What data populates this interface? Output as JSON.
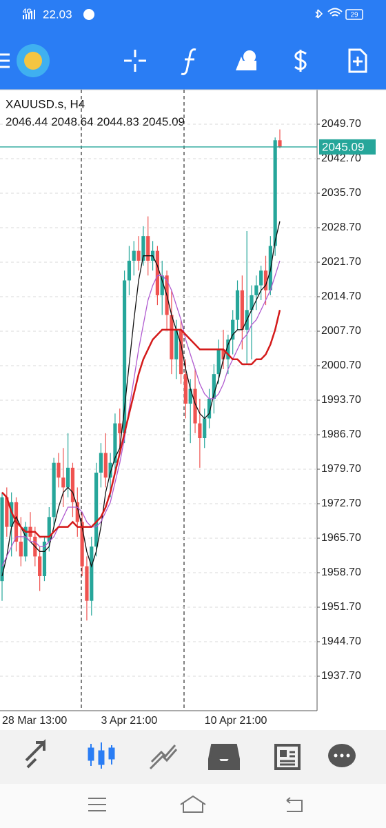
{
  "status_bar": {
    "network": "4G",
    "time": "22.03",
    "battery": "29"
  },
  "chart_data": {
    "type": "candlestick",
    "title": "XAUUSD.s, H4",
    "categories": [
      "28 Mar 13:00",
      null,
      null,
      null,
      null,
      null,
      null,
      null,
      null,
      null,
      null,
      null,
      null,
      null,
      null,
      null,
      null,
      null,
      null,
      null,
      null,
      "3 Apr 21:00",
      null,
      null,
      null,
      null,
      null,
      null,
      null,
      null,
      null,
      null,
      null,
      null,
      null,
      null,
      null,
      null,
      null,
      null,
      null,
      null,
      null,
      "10 Apr 21:00",
      null,
      null,
      null,
      null,
      null,
      null,
      null,
      null,
      null,
      null,
      null,
      null,
      null,
      null,
      null,
      null
    ],
    "open": [
      1957,
      1974,
      1968,
      1973,
      1965,
      1962,
      1968,
      1966,
      1962,
      1958,
      1965,
      1970,
      1981,
      1978,
      1976,
      1980,
      1973,
      1969,
      1960,
      1953,
      1964,
      1979,
      1983,
      1978,
      1981,
      1989,
      1987,
      2018,
      2022,
      2024,
      2022,
      2027,
      2022,
      2024,
      2015,
      2019,
      2011,
      2002,
      2008,
      1999,
      1993,
      1996,
      1989,
      1986,
      1990,
      1994,
      1999,
      2004,
      2002,
      2006,
      2010,
      2016,
      2008,
      2012,
      2015,
      2017,
      2020,
      2016,
      2025,
      2046.44
    ],
    "high": [
      1975,
      1976,
      1975,
      1974,
      1970,
      1969,
      1971,
      1968,
      1964,
      1966,
      1972,
      1982,
      1983,
      1984,
      1987,
      1981,
      1976,
      1971,
      1962,
      1966,
      1981,
      1985,
      1987,
      1983,
      1991,
      1992,
      2020,
      2025,
      2026,
      2027,
      2029,
      2031,
      2026,
      2025,
      2022,
      2020,
      2016,
      2010,
      2010,
      2002,
      1998,
      2000,
      1994,
      1992,
      1996,
      2001,
      2006,
      2008,
      2007,
      2012,
      2018,
      2019,
      2028,
      2017,
      2019,
      2021,
      2023,
      2027,
      2047,
      2048.64
    ],
    "low": [
      1953,
      1966,
      1962,
      1963,
      1960,
      1961,
      1965,
      1960,
      1955,
      1957,
      1963,
      1968,
      1976,
      1972,
      1974,
      1970,
      1966,
      1958,
      1949,
      1950,
      1962,
      1976,
      1976,
      1974,
      1979,
      1984,
      1985,
      2015,
      2019,
      2020,
      2021,
      2019,
      2020,
      2013,
      2011,
      2008,
      1999,
      1998,
      1997,
      1990,
      1985,
      1987,
      1980,
      1984,
      1988,
      1991,
      1997,
      2000,
      1999,
      2003,
      2008,
      2004,
      2001,
      2002,
      2012,
      2014,
      2013,
      2015,
      2023,
      2044.83
    ],
    "close": [
      1974,
      1968,
      1973,
      1965,
      1962,
      1968,
      1966,
      1962,
      1958,
      1965,
      1970,
      1981,
      1978,
      1976,
      1980,
      1973,
      1969,
      1960,
      1953,
      1964,
      1979,
      1983,
      1978,
      1981,
      1989,
      1987,
      2018,
      2022,
      2024,
      2022,
      2027,
      2022,
      2024,
      2015,
      2019,
      2011,
      2002,
      2008,
      1999,
      1993,
      1996,
      1989,
      1986,
      1990,
      1994,
      1999,
      2004,
      2002,
      2006,
      2010,
      2016,
      2008,
      2012,
      2015,
      2017,
      2020,
      2016,
      2025,
      2046.44,
      2045.09
    ],
    "up_color": "#26a69a",
    "down_color": "#ef5350",
    "series": [
      {
        "color": "#111111",
        "values": [
          1958,
          1962,
          1968,
          1970,
          1968,
          1966,
          1965,
          1964,
          1963,
          1963,
          1964,
          1968,
          1972,
          1975,
          1976,
          1975,
          1972,
          1968,
          1963,
          1960,
          1963,
          1968,
          1975,
          1979,
          1982,
          1984,
          1992,
          2001,
          2010,
          2018,
          2023,
          2023,
          2023,
          2021,
          2018,
          2015,
          2011,
          2008,
          2005,
          2000,
          1996,
          1993,
          1991,
          1990,
          1991,
          1995,
          1998,
          2002,
          2005,
          2007,
          2008,
          2008,
          2010,
          2012,
          2014,
          2016,
          2017,
          2020,
          2026,
          2030
        ]
      },
      {
        "color": "#b05ad0",
        "values": [
          1960,
          1962,
          1964,
          1966,
          1966,
          1966,
          1965,
          1965,
          1964,
          1964,
          1965,
          1966,
          1968,
          1970,
          1972,
          1972,
          1972,
          1971,
          1969,
          1968,
          1968,
          1969,
          1971,
          1973,
          1977,
          1981,
          1986,
          1992,
          1998,
          2004,
          2009,
          2014,
          2017,
          2019,
          2019,
          2018,
          2016,
          2013,
          2010,
          2006,
          2003,
          2000,
          1997,
          1995,
          1994,
          1994,
          1995,
          1997,
          2000,
          2002,
          2004,
          2006,
          2007,
          2009,
          2010,
          2012,
          2014,
          2016,
          2019,
          2022
        ]
      },
      {
        "color": "#d41a1a",
        "values": [
          1975,
          1974,
          1971,
          1969,
          1968,
          1967,
          1967,
          1967,
          1966,
          1966,
          1966,
          1967,
          1968,
          1968,
          1968,
          1969,
          1968,
          1968,
          1968,
          1968,
          1969,
          1970,
          1972,
          1975,
          1979,
          1983,
          1987,
          1991,
          1995,
          1999,
          2002,
          2004,
          2006,
          2007,
          2008,
          2008,
          2008,
          2008,
          2008,
          2007,
          2006,
          2005,
          2004,
          2004,
          2004,
          2004,
          2004,
          2004,
          2003,
          2002,
          2002,
          2001,
          2001,
          2001,
          2002,
          2002,
          2003,
          2005,
          2008,
          2012
        ]
      }
    ],
    "ylim": [
      1930.7,
      2056.7
    ],
    "yticks": [
      {
        "value": 1937.7,
        "label": "1937.70"
      },
      {
        "value": 1944.7,
        "label": "1944.70"
      },
      {
        "value": 1951.7,
        "label": "1951.70"
      },
      {
        "value": 1958.7,
        "label": "1958.70"
      },
      {
        "value": 1965.7,
        "label": "1965.70"
      },
      {
        "value": 1972.7,
        "label": "1972.70"
      },
      {
        "value": 1979.7,
        "label": "1979.70"
      },
      {
        "value": 1986.7,
        "label": "1986.70"
      },
      {
        "value": 1993.7,
        "label": "1993.70"
      },
      {
        "value": 2000.7,
        "label": "2000.70"
      },
      {
        "value": 2007.7,
        "label": "2007.70"
      },
      {
        "value": 2014.7,
        "label": "2014.70"
      },
      {
        "value": 2021.7,
        "label": "2021.70"
      },
      {
        "value": 2028.7,
        "label": "2028.70"
      },
      {
        "value": 2035.7,
        "label": "2035.70"
      },
      {
        "value": 2042.7,
        "label": "2042.70"
      },
      {
        "value": 2049.7,
        "label": "2049.70"
      }
    ],
    "grid": true,
    "price_line_color": "#26a69a"
  }
}
